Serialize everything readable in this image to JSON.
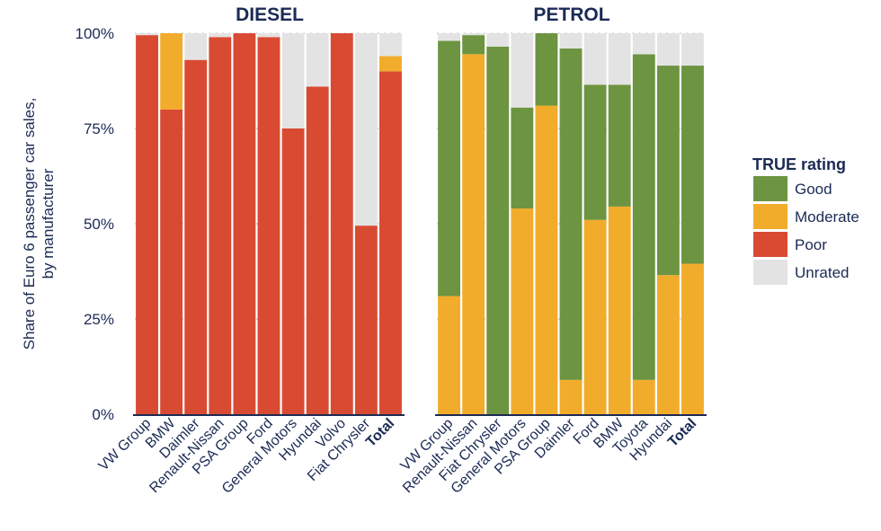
{
  "chart_data": [
    {
      "type": "bar",
      "stacked": true,
      "title": "DIESEL",
      "ylabel": "Share of Euro 6 passenger car sales,\nby manufacturer",
      "ylim": [
        0,
        100
      ],
      "yticks": [
        "0%",
        "25%",
        "50%",
        "75%",
        "100%"
      ],
      "categories": [
        "VW Group",
        "BMW",
        "Daimler",
        "Renault-Nissan",
        "PSA Group",
        "Ford",
        "General Motors",
        "Hyundai",
        "Volvo",
        "Fiat Chrysler",
        "Total"
      ],
      "series": [
        {
          "name": "Poor",
          "values": [
            99.5,
            80,
            93,
            99,
            100,
            99,
            75,
            86,
            100,
            49.5,
            90
          ]
        },
        {
          "name": "Moderate",
          "values": [
            0,
            20,
            0,
            0,
            0,
            0,
            0,
            0,
            0,
            0,
            4
          ]
        },
        {
          "name": "Good",
          "values": [
            0,
            0,
            0,
            0,
            0,
            0,
            0,
            0,
            0,
            0,
            0
          ]
        },
        {
          "name": "Unrated",
          "values": [
            0.5,
            0,
            7,
            1,
            0,
            1,
            25,
            14,
            0,
            50.5,
            6
          ]
        }
      ]
    },
    {
      "type": "bar",
      "stacked": true,
      "title": "PETROL",
      "ylim": [
        0,
        100
      ],
      "categories": [
        "VW Group",
        "Renault-Nissan",
        "Fiat Chrysler",
        "General Motors",
        "PSA Group",
        "Daimler",
        "Ford",
        "BMW",
        "Toyota",
        "Hyundai",
        "Total"
      ],
      "series": [
        {
          "name": "Poor",
          "values": [
            0,
            0,
            0,
            0,
            0,
            0,
            0,
            0,
            0,
            0,
            0
          ]
        },
        {
          "name": "Moderate",
          "values": [
            31,
            94.5,
            0,
            54,
            81,
            9,
            51,
            54.5,
            9,
            36.5,
            39.5
          ]
        },
        {
          "name": "Good",
          "values": [
            67,
            5,
            96.5,
            26.5,
            19,
            87,
            35.5,
            32,
            85.5,
            55,
            52
          ]
        },
        {
          "name": "Unrated",
          "values": [
            2,
            0.5,
            3.5,
            19.5,
            0,
            4,
            13.5,
            13.5,
            5.5,
            8.5,
            8.5
          ]
        }
      ]
    }
  ],
  "legend": {
    "title": "TRUE rating",
    "position": "right",
    "items": [
      {
        "label": "Good",
        "color": "#6d9441"
      },
      {
        "label": "Moderate",
        "color": "#f2ac2b"
      },
      {
        "label": "Poor",
        "color": "#d94a33"
      },
      {
        "label": "Unrated",
        "color": "#e3e3e3"
      }
    ]
  },
  "colors": {
    "Good": "#6d9441",
    "Moderate": "#f2ac2b",
    "Poor": "#d94a33",
    "Unrated": "#e3e3e3",
    "text": "#1b2a55",
    "grid": "#c9c9c9"
  },
  "grid": "dotted horizontal"
}
